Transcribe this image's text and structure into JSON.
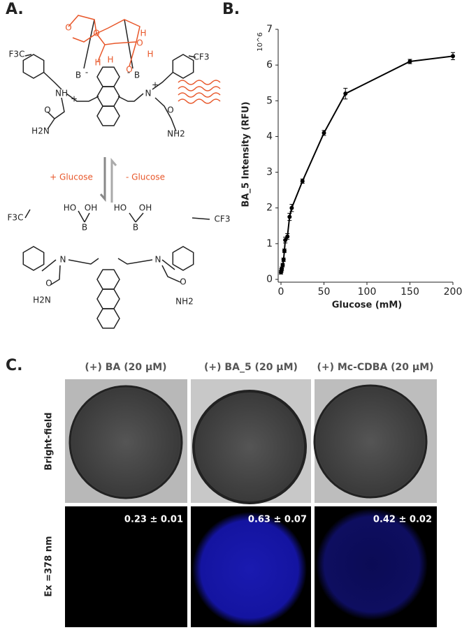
{
  "panels": {
    "a": "A.",
    "b": "B.",
    "c": "C."
  },
  "diagram": {
    "top_atoms": [
      "F3C",
      "CF3",
      "B",
      "B",
      "NH",
      "N",
      "+",
      "+",
      "-",
      "-",
      "O",
      "H2N",
      "O",
      "NH2"
    ],
    "glucose_atoms": [
      "O",
      "O",
      "O",
      "O",
      "H",
      "H",
      "H",
      "H"
    ],
    "reaction": {
      "forward": "+ Glucose",
      "reverse": "- Glucose"
    },
    "bottom_atoms": [
      "F3C",
      "CF3",
      "HO",
      "OH",
      "HO",
      "OH",
      "B",
      "B",
      "N",
      "N",
      "O",
      "H2N",
      "O",
      "NH2"
    ]
  },
  "chart_data": {
    "type": "line",
    "y_label": "BA_5 Intensity (RFU)",
    "y_multiplier": "10^6",
    "x_label": "Glucose (mM)",
    "x": [
      0,
      0.5,
      1,
      2,
      3,
      4,
      5,
      7.5,
      10,
      12.5,
      25,
      50,
      75,
      150,
      200
    ],
    "series": [
      {
        "color": "#000000",
        "values": [
          0.2,
          0.25,
          0.3,
          0.4,
          0.55,
          0.8,
          1.1,
          1.2,
          1.75,
          2.0,
          2.75,
          4.1,
          5.2,
          6.1,
          6.25
        ],
        "errors": [
          0.05,
          0.05,
          0.05,
          0.05,
          0.05,
          0.05,
          0.08,
          0.08,
          0.1,
          0.1,
          0.06,
          0.07,
          0.15,
          0.06,
          0.1
        ]
      }
    ],
    "xlim": [
      0,
      200
    ],
    "xticks": [
      0,
      50,
      100,
      150,
      200
    ],
    "ylim": [
      0,
      7
    ],
    "yticks": [
      0,
      1,
      2,
      3,
      4,
      5,
      6,
      7
    ]
  },
  "imaging": {
    "columns": [
      "(+) BA (20 μM)",
      "(+) BA_5 (20 μM)",
      "(+) Mc-CDBA (20 μM)"
    ],
    "rows": [
      "Bright-field",
      "Ex =378 nm"
    ],
    "values": [
      "0.23 ± 0.01",
      "0.63 ± 0.07",
      "0.42 ± 0.02"
    ]
  }
}
